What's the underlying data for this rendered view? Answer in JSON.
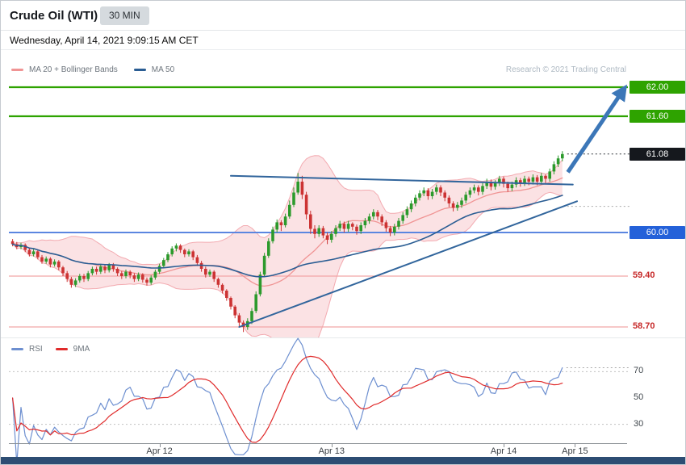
{
  "header": {
    "title": "Crude Oil (WTI)",
    "timeframe": "30 MIN",
    "datetime": "Wednesday, April 14, 2021 9:09:15 AM CET",
    "research": "Research © 2021 Trading Central"
  },
  "legend": {
    "main": [
      {
        "label": "MA 20 + Bollinger Bands",
        "color": "#f09494"
      },
      {
        "label": "MA 50",
        "color": "#2a5d93"
      }
    ],
    "rsi": [
      {
        "label": "RSI",
        "color": "#6d8fd0"
      },
      {
        "label": "9MA",
        "color": "#e02b2b"
      }
    ]
  },
  "colors": {
    "accent_green": "#2ea300",
    "blue_line": "#5b86e0",
    "blue_label_bg": "#2461d9",
    "salmon_line": "#f2a6a6",
    "red_text": "#c62828",
    "last_label_bg": "#15181d",
    "last_leader": "#2e3238",
    "gray_leader": "#a9a9a9",
    "candle_up": "#2c9a2c",
    "candle_down": "#cc3333",
    "ma20": "#f09494",
    "ma50": "#2a5d93",
    "bollinger_fill": "rgba(244,166,172,0.33)",
    "bollinger_edge": "rgba(241,158,164,0.85)",
    "trendline": "#31659c",
    "arrow": "#3c77b8",
    "rsi_line": "#6d8fd0",
    "rsi_ma": "#e02b2b",
    "grid_dotted": "#c0c0c0"
  },
  "chart_data": {
    "type": "candlestick",
    "symbol": "Crude Oil (WTI)",
    "interval": "30 MIN",
    "last_price": 61.08,
    "ylim": [
      58.56,
      62.52
    ],
    "levels": [
      {
        "price": 62.0,
        "label": "62.00",
        "kind": "resistance",
        "style": "box",
        "color_key": "green"
      },
      {
        "price": 61.6,
        "label": "61.60",
        "kind": "resistance",
        "style": "box",
        "color_key": "green"
      },
      {
        "price": 61.08,
        "label": "61.08",
        "kind": "last",
        "style": "box",
        "color_key": "dark"
      },
      {
        "price": 60.0,
        "label": "60.00",
        "kind": "support",
        "style": "box",
        "color_key": "blue"
      },
      {
        "price": 59.4,
        "label": "59.40",
        "kind": "support",
        "style": "text",
        "color_key": "red"
      },
      {
        "price": 58.7,
        "label": "58.70",
        "kind": "support",
        "style": "text",
        "color_key": "red"
      }
    ],
    "dotted_leaders": [
      {
        "price": 61.08,
        "color_key": "dark"
      },
      {
        "price": 60.36,
        "color_key": "gray"
      }
    ],
    "trendlines": [
      {
        "name": "ascending-support-trendline",
        "from_i": 54,
        "from_price": 58.7,
        "to_i": 134.5,
        "to_price": 60.43
      },
      {
        "name": "upper-wedge-trendline",
        "from_i": 52,
        "from_price": 60.78,
        "to_i": 133.5,
        "to_price": 60.66
      }
    ],
    "arrow": {
      "from_i": 132.3,
      "from_price": 60.83,
      "to_i": 144.8,
      "to_price": 61.9
    },
    "x_ticks": [
      {
        "label": "Apr 12",
        "i": 35
      },
      {
        "label": "Apr 13",
        "i": 76
      },
      {
        "label": "Apr 14",
        "i": 117
      },
      {
        "label": "Apr 15",
        "i": 134
      }
    ],
    "indicators": {
      "ma20": {
        "period": 20
      },
      "ma50": {
        "period": 50
      },
      "bollinger": {
        "period": 20,
        "stddev": 2
      },
      "rsi": {
        "period": 14,
        "ma_period": 9,
        "ticks": [
          70,
          50,
          30
        ],
        "dotted_ticks": [
          70,
          30
        ]
      }
    },
    "candles": [
      [
        59.88,
        59.91,
        59.81,
        59.84
      ],
      [
        59.84,
        59.87,
        59.77,
        59.8
      ],
      [
        59.8,
        59.86,
        59.77,
        59.83
      ],
      [
        59.83,
        59.85,
        59.73,
        59.76
      ],
      [
        59.76,
        59.79,
        59.67,
        59.7
      ],
      [
        59.7,
        59.77,
        59.67,
        59.74
      ],
      [
        59.74,
        59.76,
        59.63,
        59.66
      ],
      [
        59.66,
        59.69,
        59.57,
        59.6
      ],
      [
        59.6,
        59.67,
        59.57,
        59.64
      ],
      [
        59.64,
        59.66,
        59.52,
        59.56
      ],
      [
        59.56,
        59.63,
        59.53,
        59.6
      ],
      [
        59.6,
        59.62,
        59.48,
        59.52
      ],
      [
        59.52,
        59.54,
        59.4,
        59.44
      ],
      [
        59.44,
        59.47,
        59.32,
        59.36
      ],
      [
        59.36,
        59.39,
        59.24,
        59.28
      ],
      [
        59.28,
        59.37,
        59.25,
        59.34
      ],
      [
        59.34,
        59.43,
        59.31,
        59.4
      ],
      [
        59.4,
        59.43,
        59.32,
        59.36
      ],
      [
        59.36,
        59.47,
        59.33,
        59.44
      ],
      [
        59.44,
        59.53,
        59.41,
        59.5
      ],
      [
        59.5,
        59.53,
        59.42,
        59.46
      ],
      [
        59.46,
        59.56,
        59.43,
        59.53
      ],
      [
        59.53,
        59.56,
        59.44,
        59.48
      ],
      [
        59.48,
        59.58,
        59.45,
        59.55
      ],
      [
        59.55,
        59.58,
        59.46,
        59.5
      ],
      [
        59.5,
        59.52,
        59.4,
        59.44
      ],
      [
        59.44,
        59.47,
        59.36,
        59.4
      ],
      [
        59.4,
        59.49,
        59.37,
        59.46
      ],
      [
        59.46,
        59.48,
        59.37,
        59.41
      ],
      [
        59.41,
        59.44,
        59.32,
        59.36
      ],
      [
        59.36,
        59.45,
        59.33,
        59.42
      ],
      [
        59.42,
        59.44,
        59.31,
        59.35
      ],
      [
        59.35,
        59.38,
        59.27,
        59.31
      ],
      [
        59.31,
        59.41,
        59.28,
        59.38
      ],
      [
        59.38,
        59.49,
        59.35,
        59.46
      ],
      [
        59.46,
        59.57,
        59.43,
        59.54
      ],
      [
        59.54,
        59.65,
        59.51,
        59.62
      ],
      [
        59.62,
        59.73,
        59.59,
        59.7
      ],
      [
        59.7,
        59.81,
        59.67,
        59.78
      ],
      [
        59.78,
        59.85,
        59.74,
        59.82
      ],
      [
        59.82,
        59.84,
        59.72,
        59.76
      ],
      [
        59.76,
        59.78,
        59.66,
        59.7
      ],
      [
        59.7,
        59.77,
        59.67,
        59.74
      ],
      [
        59.74,
        59.76,
        59.62,
        59.66
      ],
      [
        59.66,
        59.69,
        59.54,
        59.58
      ],
      [
        59.58,
        59.61,
        59.46,
        59.5
      ],
      [
        59.5,
        59.53,
        59.38,
        59.42
      ],
      [
        59.42,
        59.49,
        59.39,
        59.46
      ],
      [
        59.46,
        59.48,
        59.32,
        59.36
      ],
      [
        59.36,
        59.38,
        59.24,
        59.28
      ],
      [
        59.28,
        59.3,
        59.16,
        59.2
      ],
      [
        59.2,
        59.22,
        59.06,
        59.1
      ],
      [
        59.1,
        59.12,
        58.94,
        58.98
      ],
      [
        58.98,
        59.0,
        58.82,
        58.86
      ],
      [
        58.86,
        58.89,
        58.71,
        58.76
      ],
      [
        58.76,
        58.79,
        58.63,
        58.7
      ],
      [
        58.7,
        58.82,
        58.66,
        58.78
      ],
      [
        58.78,
        58.96,
        58.74,
        58.92
      ],
      [
        58.92,
        59.19,
        58.89,
        59.15
      ],
      [
        59.15,
        59.46,
        59.12,
        59.42
      ],
      [
        59.42,
        59.72,
        59.39,
        59.68
      ],
      [
        59.68,
        59.92,
        59.65,
        59.88
      ],
      [
        59.88,
        60.08,
        59.85,
        60.04
      ],
      [
        60.04,
        60.18,
        60.0,
        60.14
      ],
      [
        60.14,
        60.17,
        60.02,
        60.1
      ],
      [
        60.1,
        60.26,
        60.07,
        60.22
      ],
      [
        60.22,
        60.44,
        60.19,
        60.38
      ],
      [
        60.38,
        60.62,
        60.35,
        60.55
      ],
      [
        60.55,
        60.82,
        60.52,
        60.7
      ],
      [
        60.7,
        60.78,
        60.46,
        60.52
      ],
      [
        60.52,
        60.56,
        60.18,
        60.25
      ],
      [
        60.25,
        60.3,
        59.98,
        60.05
      ],
      [
        60.05,
        60.1,
        59.92,
        59.98
      ],
      [
        59.98,
        60.1,
        59.94,
        60.06
      ],
      [
        60.06,
        60.09,
        59.92,
        59.96
      ],
      [
        59.96,
        60.0,
        59.84,
        59.9
      ],
      [
        59.9,
        60.02,
        59.86,
        59.98
      ],
      [
        59.98,
        60.1,
        59.94,
        60.06
      ],
      [
        60.06,
        60.16,
        60.02,
        60.12
      ],
      [
        60.12,
        60.15,
        60.0,
        60.05
      ],
      [
        60.05,
        60.16,
        60.01,
        60.12
      ],
      [
        60.12,
        60.14,
        60.03,
        60.08
      ],
      [
        60.08,
        60.11,
        59.97,
        60.02
      ],
      [
        60.02,
        60.14,
        59.98,
        60.1
      ],
      [
        60.1,
        60.2,
        60.06,
        60.16
      ],
      [
        60.16,
        60.26,
        60.12,
        60.22
      ],
      [
        60.22,
        60.32,
        60.18,
        60.28
      ],
      [
        60.28,
        60.31,
        60.17,
        60.22
      ],
      [
        60.22,
        60.25,
        60.09,
        60.14
      ],
      [
        60.14,
        60.17,
        60.01,
        60.06
      ],
      [
        60.06,
        60.09,
        59.95,
        60.0
      ],
      [
        60.0,
        60.12,
        59.96,
        60.08
      ],
      [
        60.08,
        60.2,
        60.04,
        60.16
      ],
      [
        60.16,
        60.28,
        60.12,
        60.24
      ],
      [
        60.24,
        60.36,
        60.2,
        60.32
      ],
      [
        60.32,
        60.44,
        60.28,
        60.4
      ],
      [
        60.4,
        60.52,
        60.36,
        60.48
      ],
      [
        60.48,
        60.58,
        60.44,
        60.54
      ],
      [
        60.54,
        60.62,
        60.5,
        60.58
      ],
      [
        60.58,
        60.61,
        60.45,
        60.5
      ],
      [
        60.5,
        60.6,
        60.46,
        60.56
      ],
      [
        60.56,
        60.66,
        60.52,
        60.62
      ],
      [
        60.62,
        60.65,
        60.5,
        60.55
      ],
      [
        60.55,
        60.58,
        60.43,
        60.48
      ],
      [
        60.48,
        60.51,
        60.35,
        60.4
      ],
      [
        60.4,
        60.43,
        60.29,
        60.34
      ],
      [
        60.34,
        60.42,
        60.3,
        60.38
      ],
      [
        60.38,
        60.48,
        60.34,
        60.44
      ],
      [
        60.44,
        60.56,
        60.4,
        60.52
      ],
      [
        60.52,
        60.62,
        60.48,
        60.58
      ],
      [
        60.58,
        60.66,
        60.54,
        60.62
      ],
      [
        60.62,
        60.65,
        60.51,
        60.56
      ],
      [
        60.56,
        60.68,
        60.52,
        60.64
      ],
      [
        60.64,
        60.74,
        60.6,
        60.7
      ],
      [
        60.7,
        60.73,
        60.58,
        60.63
      ],
      [
        60.63,
        60.72,
        60.59,
        60.68
      ],
      [
        60.68,
        60.78,
        60.64,
        60.74
      ],
      [
        60.74,
        60.77,
        60.62,
        60.67
      ],
      [
        60.67,
        60.7,
        60.56,
        60.61
      ],
      [
        60.61,
        60.7,
        60.57,
        60.66
      ],
      [
        60.66,
        60.76,
        60.62,
        60.72
      ],
      [
        60.72,
        60.75,
        60.63,
        60.68
      ],
      [
        60.68,
        60.78,
        60.64,
        60.74
      ],
      [
        60.74,
        60.77,
        60.65,
        60.7
      ],
      [
        60.7,
        60.8,
        60.66,
        60.76
      ],
      [
        60.76,
        60.79,
        60.65,
        60.7
      ],
      [
        60.7,
        60.82,
        60.66,
        60.78
      ],
      [
        60.78,
        60.8,
        60.68,
        60.74
      ],
      [
        60.74,
        60.88,
        60.7,
        60.84
      ],
      [
        60.84,
        60.98,
        60.8,
        60.94
      ],
      [
        60.94,
        61.06,
        60.9,
        61.02
      ],
      [
        61.02,
        61.12,
        60.98,
        61.08
      ]
    ]
  }
}
